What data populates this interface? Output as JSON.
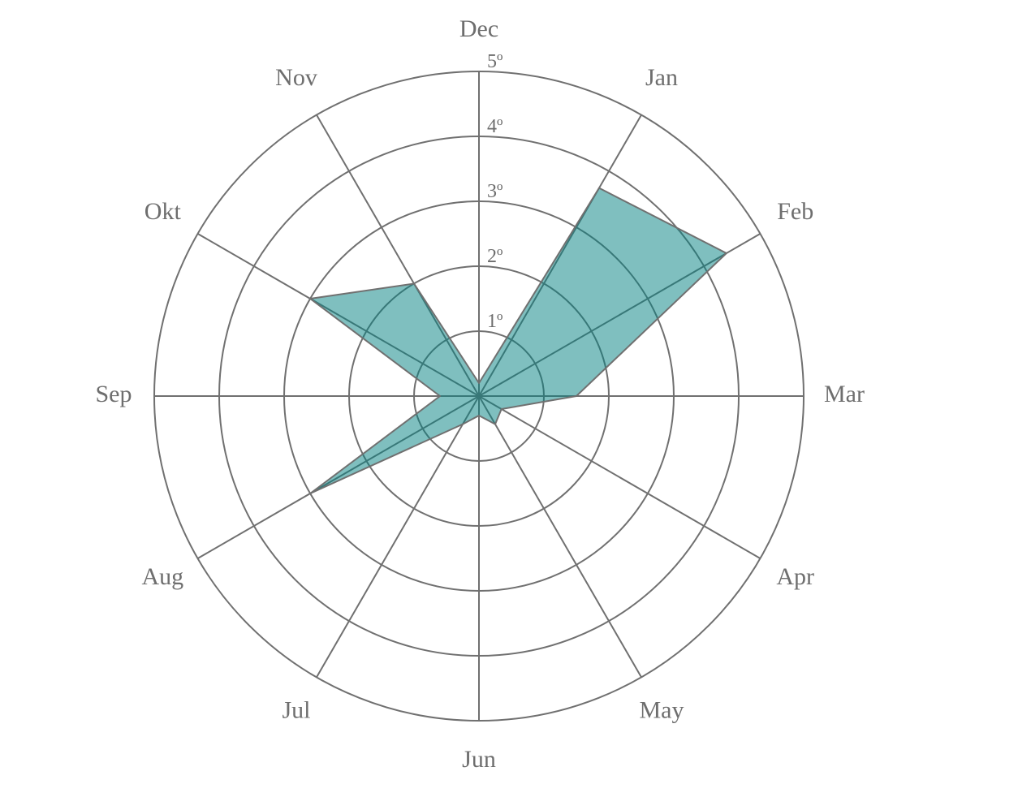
{
  "chart_data": {
    "type": "radar",
    "title": "",
    "categories": [
      "Dec",
      "Jan",
      "Feb",
      "Mar",
      "Apr",
      "May",
      "Jun",
      "Jul",
      "Aug",
      "Sep",
      "Okt",
      "Nov"
    ],
    "series": [
      {
        "values": [
          0.2,
          3.7,
          4.4,
          1.5,
          0.4,
          0.5,
          0.3,
          0.5,
          3.0,
          0.6,
          3.0,
          2.0
        ]
      }
    ],
    "radial_axis": {
      "range": [
        0,
        5
      ],
      "ticks": [
        1,
        2,
        3,
        4,
        5
      ],
      "tick_labels": [
        "1º",
        "2º",
        "3º",
        "4º",
        "5º"
      ]
    },
    "grid": true,
    "legend": "none",
    "colors": {
      "fill": "#008080",
      "stroke": "#707070",
      "grid": "#707070",
      "text": "#6e6e6e"
    }
  }
}
